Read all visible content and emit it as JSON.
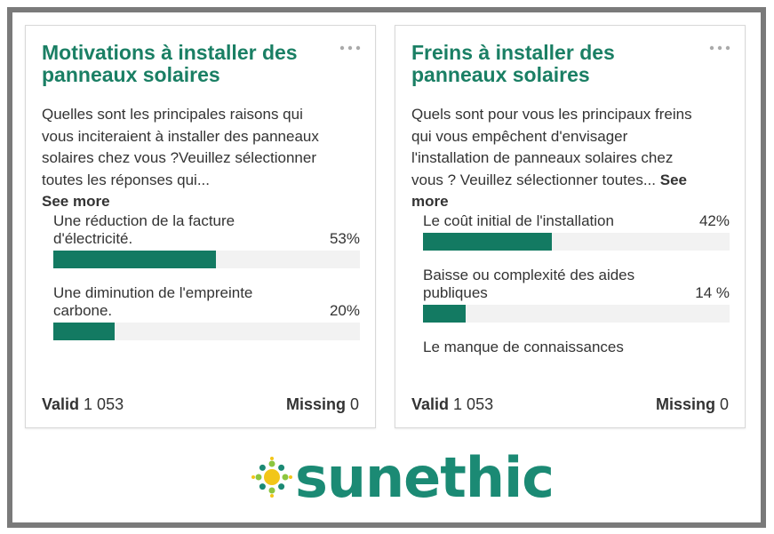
{
  "cards": [
    {
      "title": "Motivations à installer des panneaux solaires",
      "question": "Quelles sont les principales raisons qui vous inciteraient à installer des panneaux solaires chez vous ?Veuillez sélectionner toutes les réponses qui...",
      "see_more": "See more",
      "items": [
        {
          "label": "Une réduction de la facture d'électricité.",
          "value": 53,
          "value_label": "53%"
        },
        {
          "label": "Une diminution de l'empreinte carbone.",
          "value": 20,
          "value_label": "20%"
        }
      ],
      "valid_label": "Valid",
      "valid_count": "1 053",
      "missing_label": "Missing",
      "missing_count": "0"
    },
    {
      "title": "Freins à installer des panneaux solaires",
      "question": "Quels sont pour vous les principaux freins qui vous empêchent d'envisager l'installation de panneaux solaires chez vous ? Veuillez sélectionner toutes...",
      "see_more": "See more",
      "items": [
        {
          "label": "Le coût initial de l'installation",
          "value": 42,
          "value_label": "42%"
        },
        {
          "label": "Baisse ou complexité des aides publiques",
          "value": 14,
          "value_label": "14 %"
        },
        {
          "label": "Le manque de connaissances"
        }
      ],
      "valid_label": "Valid",
      "valid_count": "1 053",
      "missing_label": "Missing",
      "missing_count": "0"
    }
  ],
  "logo": {
    "text": "sunethic"
  }
}
